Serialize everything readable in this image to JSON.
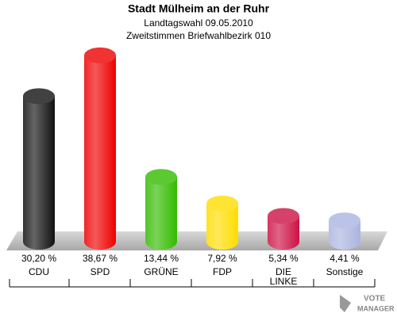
{
  "chart_data": {
    "type": "cylinder-bar",
    "title": "Stadt Mülheim an der Ruhr",
    "subtitle": [
      "Landtagswahl 09.05.2010",
      "Zweitstimmen Briefwahlbezirk 010"
    ],
    "categories": [
      "CDU",
      "SPD",
      "GRÜNE",
      "FDP",
      "DIE LINKE",
      "Sonstige"
    ],
    "values": [
      30.2,
      38.67,
      13.44,
      7.92,
      5.34,
      4.41
    ],
    "value_labels": [
      "30,20 %",
      "38,67 %",
      "13,44 %",
      "7,92 %",
      "5,34 %",
      "4,41 %"
    ],
    "colors": [
      "#111111",
      "#ee0000",
      "#33bb00",
      "#ffdd00",
      "#cc1144",
      "#aab4e0"
    ],
    "logo": [
      "VOTE",
      "MANAGER"
    ]
  }
}
